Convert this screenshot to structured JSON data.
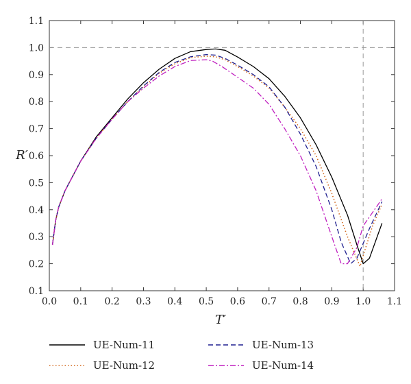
{
  "chart_data": {
    "type": "line",
    "title": "",
    "xlabel": "T′",
    "ylabel": "R′",
    "xlim": [
      0.0,
      1.1
    ],
    "ylim": [
      0.1,
      1.1
    ],
    "xticks": [
      "0.0",
      "0.1",
      "0.2",
      "0.3",
      "0.4",
      "0.5",
      "0.6",
      "0.7",
      "0.8",
      "0.9",
      "1.0",
      "1.1"
    ],
    "yticks": [
      "0.1",
      "0.2",
      "0.3",
      "0.4",
      "0.5",
      "0.6",
      "0.7",
      "0.8",
      "0.9",
      "1.0",
      "1.1"
    ],
    "grid": false,
    "reference_lines": [
      {
        "axis": "y",
        "value": 1.0,
        "style": "dashed",
        "color": "#9a9a9a"
      },
      {
        "axis": "x",
        "value": 1.0,
        "style": "dashed",
        "color": "#9a9a9a"
      }
    ],
    "legend_position": "bottom",
    "series": [
      {
        "name": "UE-Num-11",
        "color": "#000000",
        "dash": "solid",
        "x": [
          0.01,
          0.02,
          0.03,
          0.05,
          0.1,
          0.15,
          0.2,
          0.25,
          0.3,
          0.35,
          0.4,
          0.45,
          0.5,
          0.53,
          0.56,
          0.6,
          0.65,
          0.7,
          0.75,
          0.8,
          0.85,
          0.9,
          0.95,
          0.98,
          1.0,
          1.02,
          1.06
        ],
        "y": [
          0.27,
          0.36,
          0.41,
          0.47,
          0.58,
          0.67,
          0.74,
          0.81,
          0.87,
          0.92,
          0.96,
          0.985,
          0.993,
          0.995,
          0.99,
          0.965,
          0.93,
          0.885,
          0.82,
          0.74,
          0.64,
          0.52,
          0.38,
          0.27,
          0.2,
          0.22,
          0.35
        ]
      },
      {
        "name": "UE-Num-12",
        "color": "#d2691e",
        "dash": "dotted",
        "x": [
          0.01,
          0.02,
          0.03,
          0.05,
          0.1,
          0.15,
          0.2,
          0.25,
          0.3,
          0.35,
          0.4,
          0.45,
          0.5,
          0.53,
          0.56,
          0.6,
          0.65,
          0.7,
          0.75,
          0.8,
          0.85,
          0.9,
          0.95,
          0.99,
          1.0,
          1.03,
          1.06
        ],
        "y": [
          0.27,
          0.36,
          0.41,
          0.47,
          0.58,
          0.665,
          0.735,
          0.8,
          0.855,
          0.905,
          0.94,
          0.963,
          0.968,
          0.966,
          0.955,
          0.93,
          0.895,
          0.85,
          0.78,
          0.7,
          0.6,
          0.46,
          0.3,
          0.19,
          0.23,
          0.34,
          0.42
        ]
      },
      {
        "name": "UE-Num-13",
        "color": "#1f1f8f",
        "dash": "dashed",
        "x": [
          0.01,
          0.02,
          0.03,
          0.05,
          0.1,
          0.15,
          0.2,
          0.25,
          0.3,
          0.35,
          0.4,
          0.45,
          0.5,
          0.53,
          0.56,
          0.6,
          0.65,
          0.7,
          0.75,
          0.8,
          0.85,
          0.9,
          0.93,
          0.96,
          0.98,
          1.02,
          1.06
        ],
        "y": [
          0.27,
          0.36,
          0.41,
          0.47,
          0.58,
          0.665,
          0.735,
          0.8,
          0.858,
          0.908,
          0.945,
          0.966,
          0.974,
          0.972,
          0.96,
          0.935,
          0.9,
          0.855,
          0.78,
          0.68,
          0.56,
          0.4,
          0.28,
          0.2,
          0.22,
          0.33,
          0.43
        ]
      },
      {
        "name": "UE-Num-14",
        "color": "#c020c0",
        "dash": "dashdot",
        "x": [
          0.01,
          0.02,
          0.03,
          0.05,
          0.1,
          0.15,
          0.2,
          0.25,
          0.3,
          0.35,
          0.4,
          0.45,
          0.5,
          0.52,
          0.55,
          0.6,
          0.65,
          0.7,
          0.75,
          0.8,
          0.85,
          0.9,
          0.93,
          0.95,
          0.98,
          1.0,
          1.06
        ],
        "y": [
          0.27,
          0.36,
          0.41,
          0.47,
          0.58,
          0.665,
          0.735,
          0.8,
          0.85,
          0.895,
          0.93,
          0.952,
          0.955,
          0.95,
          0.93,
          0.89,
          0.85,
          0.79,
          0.7,
          0.6,
          0.47,
          0.3,
          0.2,
          0.2,
          0.26,
          0.34,
          0.44
        ]
      }
    ]
  }
}
